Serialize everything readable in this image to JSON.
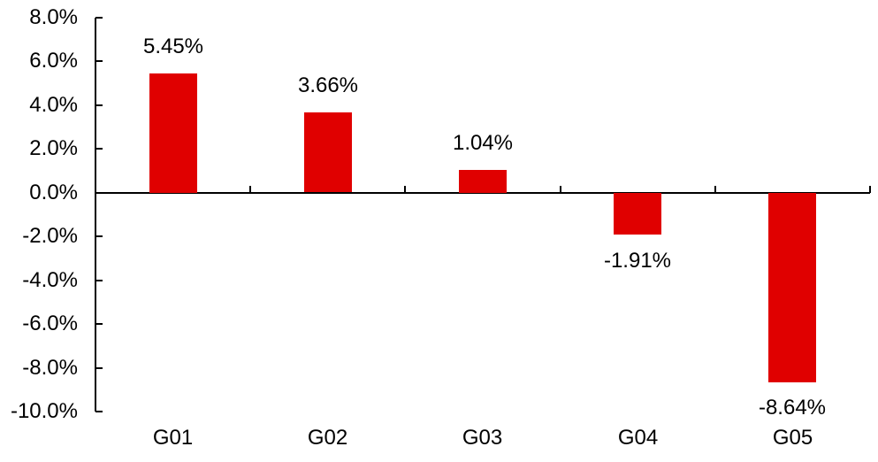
{
  "chart_data": {
    "type": "bar",
    "categories": [
      "G01",
      "G02",
      "G03",
      "G04",
      "G05"
    ],
    "values": [
      5.45,
      3.66,
      1.04,
      -1.91,
      -8.64
    ],
    "data_labels": [
      "5.45%",
      "3.66%",
      "1.04%",
      "-1.91%",
      "-8.64%"
    ],
    "title": "",
    "xlabel": "",
    "ylabel": "",
    "ylim": [
      -10,
      8
    ],
    "ytick_step": 2,
    "ytick_labels": [
      "8.0%",
      "6.0%",
      "4.0%",
      "2.0%",
      "0.0%",
      "-2.0%",
      "-4.0%",
      "-6.0%",
      "-8.0%",
      "-10.0%"
    ],
    "ytick_values": [
      8,
      6,
      4,
      2,
      0,
      -2,
      -4,
      -6,
      -8,
      -10
    ],
    "grid": false,
    "legend": false,
    "data_label_position": "outside-end",
    "colors": {
      "bar": "#e00000",
      "axis": "#000000",
      "text": "#000000",
      "background": "#ffffff"
    }
  }
}
